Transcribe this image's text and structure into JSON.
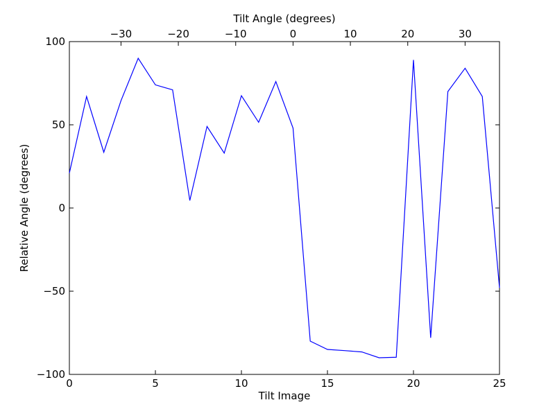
{
  "chart_data": {
    "type": "line",
    "xlabel": "Tilt Image",
    "ylabel": "Relative Angle (degrees)",
    "top_xlabel": "Tilt Angle (degrees)",
    "xlim": [
      0,
      25
    ],
    "ylim": [
      -100,
      100
    ],
    "x_ticks": [
      0,
      5,
      10,
      15,
      20,
      25
    ],
    "y_ticks": [
      -100,
      -50,
      0,
      50,
      100
    ],
    "top_ticks": [
      {
        "x": 3,
        "label": "−30"
      },
      {
        "x": 6.333,
        "label": "−20"
      },
      {
        "x": 9.667,
        "label": "−10"
      },
      {
        "x": 13,
        "label": "0"
      },
      {
        "x": 16.333,
        "label": "10"
      },
      {
        "x": 19.667,
        "label": "20"
      },
      {
        "x": 23,
        "label": "30"
      }
    ],
    "grid": false,
    "line_color": "#0000ff",
    "series": [
      {
        "x": [
          0,
          1,
          2,
          3,
          4,
          5,
          6,
          7,
          8,
          9,
          10,
          11,
          12,
          13,
          14,
          15,
          16,
          17,
          18,
          19,
          20,
          21,
          22,
          23,
          24,
          25
        ],
        "y": [
          21,
          67,
          33.5,
          64.5,
          90,
          74,
          71,
          4.5,
          49,
          33,
          67.5,
          51.5,
          76,
          48,
          -80,
          -85,
          -85.7,
          -86.5,
          -90,
          -89.7,
          89,
          -78,
          70,
          84,
          67,
          -48
        ]
      }
    ]
  }
}
